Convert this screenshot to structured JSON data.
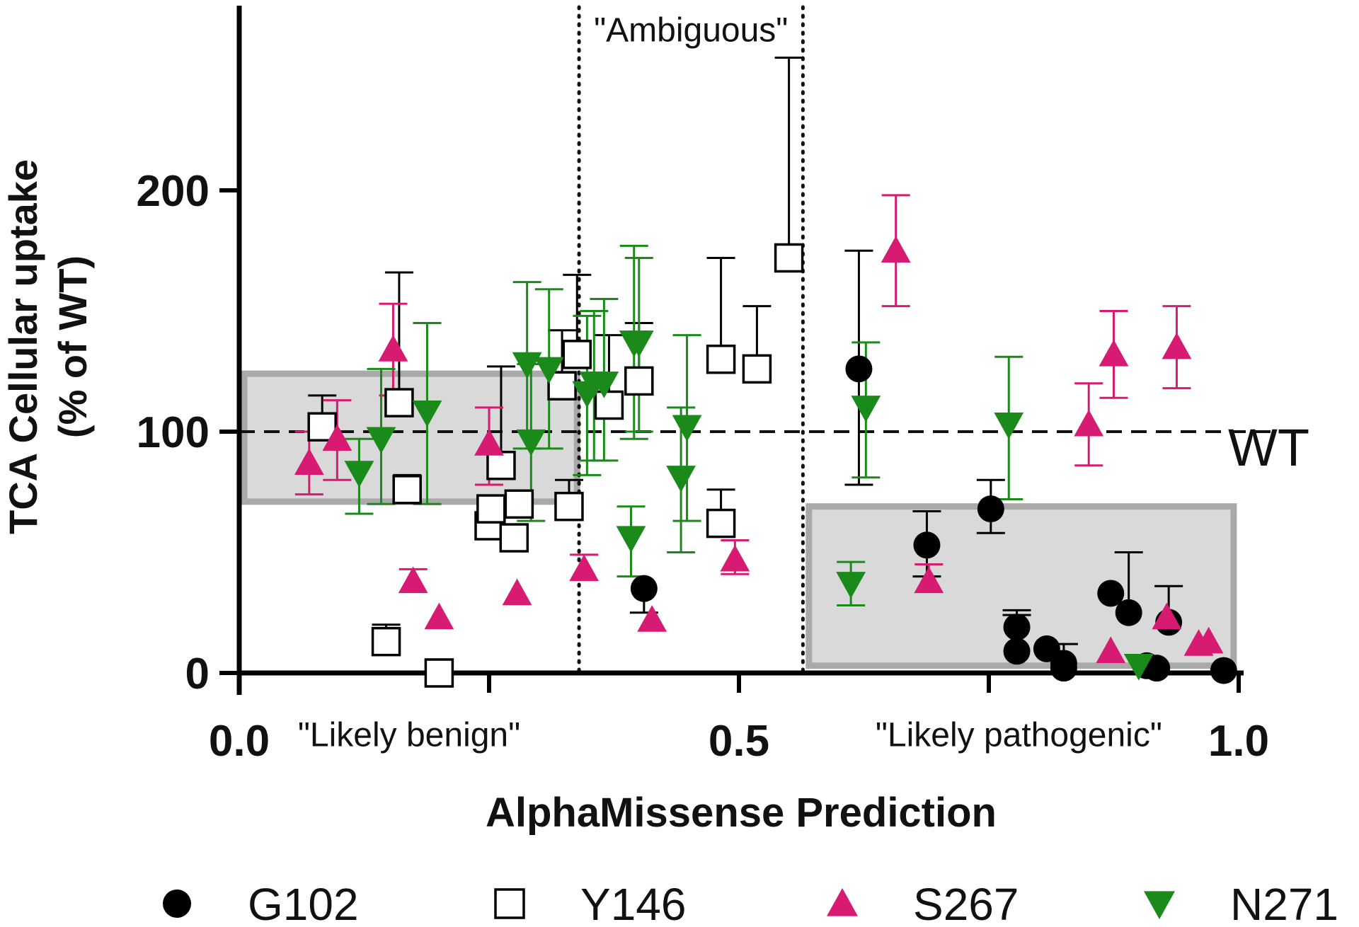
{
  "chart_data": {
    "type": "scatter",
    "title": "",
    "xlabel": "AlphaMissense Prediction",
    "ylabel_lines": [
      "TCA Cellular uptake",
      "(% of WT)"
    ],
    "xlim": [
      0.0,
      1.0
    ],
    "ylim": [
      0,
      270
    ],
    "x_ticks": [
      {
        "value": 0.0,
        "label": "0.0"
      },
      {
        "value": 0.5,
        "label": "0.5"
      },
      {
        "value": 1.0,
        "label": "1.0"
      }
    ],
    "x_minor_ticks": [
      0.25,
      0.75
    ],
    "y_ticks": [
      {
        "value": 0,
        "label": "0"
      },
      {
        "value": 100,
        "label": "100"
      },
      {
        "value": 200,
        "label": "200"
      }
    ],
    "reference_line": {
      "y": 100,
      "label": "WT",
      "style": "dashed"
    },
    "threshold_lines": [
      {
        "x": 0.34,
        "style": "dotted"
      },
      {
        "x": 0.564,
        "style": "dotted"
      }
    ],
    "region_labels": [
      {
        "text": "\"Likely benign\"",
        "x": 0.17,
        "y": -25
      },
      {
        "text": "\"Ambiguous\"",
        "x": 0.452,
        "y": 267
      },
      {
        "text": "\"Likely pathogenic\"",
        "x": 0.78,
        "y": -25
      }
    ],
    "shaded_boxes": [
      {
        "name": "benign-range",
        "x0": 0.005,
        "x1": 0.338,
        "y0": 71,
        "y1": 124
      },
      {
        "name": "pathogenic-range",
        "x0": 0.57,
        "x1": 0.995,
        "y0": 3,
        "y1": 69
      }
    ],
    "legend": {
      "placement": "bottom",
      "entries": [
        {
          "name": "G102",
          "marker": "circle",
          "color": "#000000"
        },
        {
          "name": "Y146",
          "marker": "square-open",
          "color": "#000000"
        },
        {
          "name": "S267",
          "marker": "triangle-up",
          "color": "#d81b72"
        },
        {
          "name": "N271",
          "marker": "triangle-down",
          "color": "#1a8a1a"
        }
      ]
    },
    "series": [
      {
        "name": "G102",
        "marker": "circle",
        "color": "#000000",
        "error_color": "#000000",
        "points": [
          {
            "x": 0.405,
            "y": 35,
            "lo": 25
          },
          {
            "x": 0.62,
            "y": 126,
            "hi": 175,
            "lo": 78
          },
          {
            "x": 0.688,
            "y": 53,
            "hi": 67,
            "lo": 40
          },
          {
            "x": 0.752,
            "y": 68,
            "hi": 80,
            "lo": 58
          },
          {
            "x": 0.778,
            "y": 19,
            "hi": 26
          },
          {
            "x": 0.778,
            "y": 9,
            "hi": 24
          },
          {
            "x": 0.808,
            "y": 10
          },
          {
            "x": 0.825,
            "y": 4,
            "hi": 12
          },
          {
            "x": 0.825,
            "y": 2
          },
          {
            "x": 0.872,
            "y": 33
          },
          {
            "x": 0.89,
            "y": 25,
            "hi": 50
          },
          {
            "x": 0.908,
            "y": 3
          },
          {
            "x": 0.918,
            "y": 2
          },
          {
            "x": 0.93,
            "y": 21,
            "hi": 36
          },
          {
            "x": 0.985,
            "y": 1
          }
        ]
      },
      {
        "name": "Y146",
        "marker": "square-open",
        "color": "#000000",
        "error_color": "#000000",
        "points": [
          {
            "x": 0.083,
            "y": 102,
            "hi": 115
          },
          {
            "x": 0.147,
            "y": 13,
            "hi": 20
          },
          {
            "x": 0.16,
            "y": 112,
            "hi": 166
          },
          {
            "x": 0.168,
            "y": 76,
            "hi": 82
          },
          {
            "x": 0.2,
            "y": 0
          },
          {
            "x": 0.25,
            "y": 61
          },
          {
            "x": 0.252,
            "y": 68
          },
          {
            "x": 0.262,
            "y": 86,
            "hi": 127
          },
          {
            "x": 0.275,
            "y": 56
          },
          {
            "x": 0.28,
            "y": 70
          },
          {
            "x": 0.33,
            "y": 69,
            "hi": 80
          },
          {
            "x": 0.323,
            "y": 119,
            "hi": 142
          },
          {
            "x": 0.338,
            "y": 132,
            "hi": 165
          },
          {
            "x": 0.37,
            "y": 111,
            "hi": 140
          },
          {
            "x": 0.4,
            "y": 121,
            "hi": 145
          },
          {
            "x": 0.482,
            "y": 62,
            "hi": 76
          },
          {
            "x": 0.482,
            "y": 130,
            "hi": 172
          },
          {
            "x": 0.518,
            "y": 126,
            "hi": 152
          },
          {
            "x": 0.55,
            "y": 172,
            "hi": 255
          }
        ]
      },
      {
        "name": "S267",
        "marker": "triangle-up",
        "color": "#d81b72",
        "error_color": "#d81b72",
        "points": [
          {
            "x": 0.07,
            "y": 87,
            "hi": 100,
            "lo": 74
          },
          {
            "x": 0.098,
            "y": 97,
            "hi": 113,
            "lo": 80
          },
          {
            "x": 0.154,
            "y": 134,
            "hi": 153,
            "lo": 115
          },
          {
            "x": 0.174,
            "y": 38,
            "hi": 43
          },
          {
            "x": 0.2,
            "y": 23
          },
          {
            "x": 0.25,
            "y": 95,
            "hi": 110,
            "lo": 78
          },
          {
            "x": 0.278,
            "y": 33
          },
          {
            "x": 0.345,
            "y": 43,
            "hi": 49
          },
          {
            "x": 0.413,
            "y": 22
          },
          {
            "x": 0.496,
            "y": 47,
            "hi": 55,
            "lo": 41
          },
          {
            "x": 0.657,
            "y": 175,
            "hi": 198,
            "lo": 152
          },
          {
            "x": 0.69,
            "y": 38,
            "hi": 45
          },
          {
            "x": 0.85,
            "y": 103,
            "hi": 120,
            "lo": 86
          },
          {
            "x": 0.872,
            "y": 9
          },
          {
            "x": 0.875,
            "y": 132,
            "hi": 150,
            "lo": 114
          },
          {
            "x": 0.928,
            "y": 23
          },
          {
            "x": 0.938,
            "y": 135,
            "hi": 152,
            "lo": 118
          },
          {
            "x": 0.96,
            "y": 12
          },
          {
            "x": 0.97,
            "y": 13
          }
        ]
      },
      {
        "name": "N271",
        "marker": "triangle-down",
        "color": "#1a8a1a",
        "error_color": "#1a8a1a",
        "points": [
          {
            "x": 0.12,
            "y": 83,
            "hi": 97,
            "lo": 66
          },
          {
            "x": 0.142,
            "y": 97,
            "hi": 126,
            "lo": 70
          },
          {
            "x": 0.188,
            "y": 108,
            "hi": 145,
            "lo": 70
          },
          {
            "x": 0.288,
            "y": 128,
            "hi": 162,
            "lo": 93
          },
          {
            "x": 0.292,
            "y": 96,
            "hi": 128,
            "lo": 63
          },
          {
            "x": 0.31,
            "y": 126,
            "hi": 159,
            "lo": 93
          },
          {
            "x": 0.348,
            "y": 116,
            "hi": 148,
            "lo": 82
          },
          {
            "x": 0.355,
            "y": 120,
            "hi": 150,
            "lo": 88
          },
          {
            "x": 0.365,
            "y": 120,
            "hi": 155,
            "lo": 88
          },
          {
            "x": 0.392,
            "y": 56,
            "hi": 69,
            "lo": 40
          },
          {
            "x": 0.395,
            "y": 137,
            "hi": 177,
            "lo": 97
          },
          {
            "x": 0.4,
            "y": 137,
            "hi": 172,
            "lo": 100
          },
          {
            "x": 0.442,
            "y": 81,
            "hi": 110,
            "lo": 50
          },
          {
            "x": 0.448,
            "y": 102,
            "hi": 140,
            "lo": 63
          },
          {
            "x": 0.612,
            "y": 37,
            "hi": 46,
            "lo": 28
          },
          {
            "x": 0.627,
            "y": 110,
            "hi": 137,
            "lo": 81
          },
          {
            "x": 0.77,
            "y": 103,
            "hi": 131,
            "lo": 72
          },
          {
            "x": 0.9,
            "y": 3
          }
        ]
      }
    ]
  }
}
